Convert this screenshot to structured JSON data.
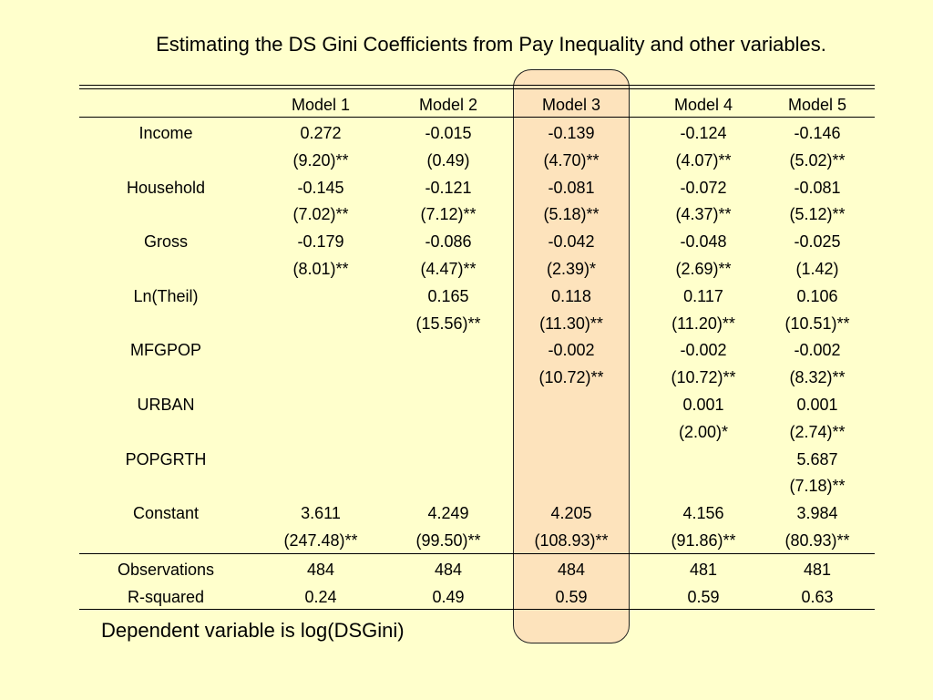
{
  "title": "Estimating the DS Gini Coefficients from Pay Inequality and other variables.",
  "header": [
    "",
    "Model 1",
    "Model 2",
    "Model 3",
    "Model 4",
    "Model 5"
  ],
  "rows": [
    [
      "Income",
      "0.272",
      "-0.015",
      "-0.139",
      "-0.124",
      "-0.146"
    ],
    [
      "",
      "(9.20)**",
      "(0.49)",
      "(4.70)**",
      "(4.07)**",
      "(5.02)**"
    ],
    [
      "Household",
      "-0.145",
      "-0.121",
      "-0.081",
      "-0.072",
      "-0.081"
    ],
    [
      "",
      "(7.02)**",
      "(7.12)**",
      "(5.18)**",
      "(4.37)**",
      "(5.12)**"
    ],
    [
      "Gross",
      "-0.179",
      "-0.086",
      "-0.042",
      "-0.048",
      "-0.025"
    ],
    [
      "",
      "(8.01)**",
      "(4.47)**",
      "(2.39)*",
      "(2.69)**",
      "(1.42)"
    ],
    [
      "Ln(Theil)",
      "",
      "0.165",
      "0.118",
      "0.117",
      "0.106"
    ],
    [
      "",
      "",
      "(15.56)**",
      "(11.30)**",
      "(11.20)**",
      "(10.51)**"
    ],
    [
      "MFGPOP",
      "",
      "",
      "-0.002",
      "-0.002",
      "-0.002"
    ],
    [
      "",
      "",
      "",
      "(10.72)**",
      "(10.72)**",
      "(8.32)**"
    ],
    [
      "URBAN",
      "",
      "",
      "",
      "0.001",
      "0.001"
    ],
    [
      "",
      "",
      "",
      "",
      "(2.00)*",
      "(2.74)**"
    ],
    [
      "POPGRTH",
      "",
      "",
      "",
      "",
      "5.687"
    ],
    [
      "",
      "",
      "",
      "",
      "",
      "(7.18)**"
    ],
    [
      "Constant",
      "3.611",
      "4.249",
      "4.205",
      "4.156",
      "3.984"
    ],
    [
      "",
      "(247.48)**",
      "(99.50)**",
      "(108.93)**",
      "(91.86)**",
      "(80.93)**"
    ]
  ],
  "footer_rows": [
    [
      "Observations",
      "484",
      "484",
      "484",
      "481",
      "481"
    ],
    [
      "R-squared",
      "0.24",
      "0.49",
      "0.59",
      "0.59",
      "0.63"
    ]
  ],
  "note": "Dependent variable is log(DSGini)",
  "colors": {
    "background": "#ffffcc",
    "highlight_fill": "#fde3bc",
    "highlight_border": "#222222"
  }
}
